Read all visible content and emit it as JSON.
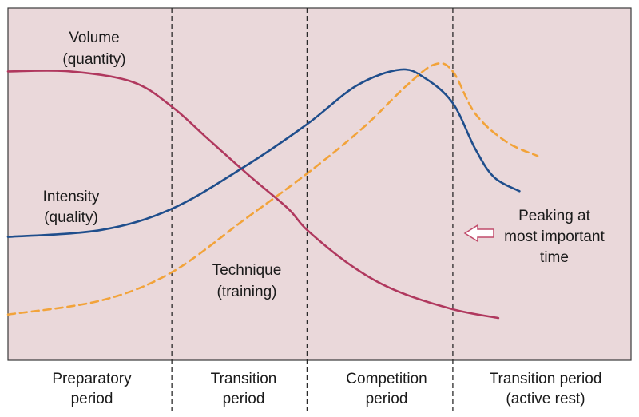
{
  "chart_data": {
    "type": "line",
    "title": "",
    "xlabel": "",
    "ylabel": "",
    "xlim": [
      0,
      100
    ],
    "ylim": [
      0,
      100
    ],
    "grid": false,
    "background": "#ead8da",
    "periods": [
      {
        "line1": "Preparatory",
        "line2": "period"
      },
      {
        "line1": "Transition",
        "line2": "period"
      },
      {
        "line1": "Competition",
        "line2": "period"
      },
      {
        "line1": "Transition period",
        "line2": "(active rest)"
      }
    ],
    "period_boundaries": [
      26.3,
      48.0,
      71.4
    ],
    "series": [
      {
        "key": "volume",
        "name_line1": "Volume",
        "name_line2": "(quantity)",
        "color": "#b0385e",
        "dashed": false,
        "points": [
          [
            0,
            82
          ],
          [
            10,
            82
          ],
          [
            20,
            79
          ],
          [
            26.3,
            72
          ],
          [
            32,
            63
          ],
          [
            39,
            52
          ],
          [
            45,
            43
          ],
          [
            48,
            37
          ],
          [
            55,
            27
          ],
          [
            62,
            20
          ],
          [
            71.4,
            14.5
          ],
          [
            78.7,
            12
          ]
        ]
      },
      {
        "key": "intensity",
        "name_line1": "Intensity",
        "name_line2": "(quality)",
        "color": "#1f4e8c",
        "dashed": false,
        "points": [
          [
            0,
            35
          ],
          [
            15,
            37
          ],
          [
            26.3,
            43
          ],
          [
            38,
            55
          ],
          [
            48,
            67
          ],
          [
            56,
            78
          ],
          [
            63,
            82.5
          ],
          [
            67,
            80
          ],
          [
            71.4,
            73
          ],
          [
            75,
            60
          ],
          [
            78,
            52
          ],
          [
            82.1,
            48
          ]
        ]
      },
      {
        "key": "technique",
        "name_line1": "Technique",
        "name_line2": "(training)",
        "color": "#f2a33a",
        "dashed": true,
        "points": [
          [
            0,
            13
          ],
          [
            15,
            17
          ],
          [
            26.3,
            25
          ],
          [
            38,
            40
          ],
          [
            48,
            53
          ],
          [
            57,
            66
          ],
          [
            64,
            78
          ],
          [
            68.5,
            84
          ],
          [
            71.4,
            82
          ],
          [
            75,
            70
          ],
          [
            80,
            62
          ],
          [
            85,
            58
          ]
        ]
      }
    ],
    "annotation": {
      "line1": "Peaking at",
      "line2": "most important",
      "line3": "time",
      "arrow_color": "#c04a6a"
    }
  }
}
